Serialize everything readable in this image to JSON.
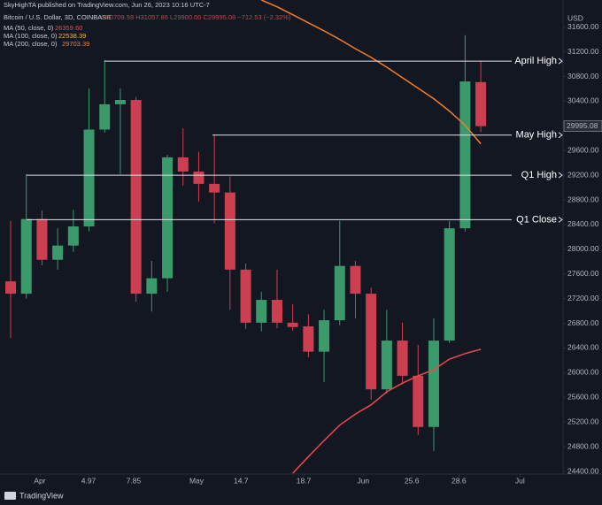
{
  "chart_data": {
    "type": "candlestick",
    "publisher": "SkyHighTA published on TradingView.com, Jun 26, 2023 10:16 UTC-7",
    "symbol": "Bitcoin / U.S. Dollar, 3D, COINBASE",
    "ohlc_header": "O30709.59 H31057.86 L29900.00 C29995.08 −712.53 (−2.32%)",
    "axis_unit": "USD",
    "last_price_label": "29995.08",
    "brand": "TradingView",
    "up_color": "#3b9a6b",
    "down_color": "#cc3f51",
    "candles": {
      "open": [
        27480,
        27280,
        28490,
        27830,
        28060,
        28370,
        29940,
        30350,
        30420,
        27280,
        27530,
        29490,
        29260,
        29060,
        28920,
        27670,
        26810,
        27180,
        26810,
        26750,
        26340,
        26850,
        27730,
        27280,
        25730,
        26520,
        25950,
        25120,
        26520,
        28340,
        30709.59
      ],
      "high": [
        28460,
        29220,
        28630,
        28340,
        28640,
        30610,
        31070,
        30610,
        30470,
        27810,
        29530,
        29960,
        29580,
        29860,
        29180,
        27770,
        27310,
        27670,
        27110,
        26950,
        27020,
        28460,
        27810,
        27380,
        27020,
        26810,
        26450,
        26880,
        28460,
        31470,
        31057.86
      ],
      "low": [
        26560,
        27200,
        27740,
        27670,
        27960,
        28290,
        29890,
        29220,
        27150,
        26990,
        27310,
        29030,
        28770,
        28420,
        27020,
        26710,
        26670,
        26720,
        26680,
        26250,
        25850,
        26770,
        26880,
        25560,
        25660,
        25810,
        24990,
        24730,
        26480,
        28290,
        29900
      ],
      "close": [
        27280,
        28490,
        27830,
        28060,
        28370,
        29940,
        30350,
        30420,
        27280,
        27530,
        29490,
        29260,
        29060,
        28920,
        27670,
        26810,
        27180,
        26810,
        26740,
        26340,
        26850,
        27730,
        27280,
        25730,
        26520,
        25950,
        25120,
        26520,
        28340,
        30720,
        29995.08
      ]
    },
    "series": [
      {
        "name": "MA (50, close, 0)",
        "value_label": "26359.60",
        "color": "#f0474f",
        "values": [
          null,
          null,
          null,
          null,
          null,
          null,
          null,
          null,
          null,
          null,
          null,
          null,
          null,
          null,
          null,
          null,
          null,
          null,
          24370,
          24640,
          24900,
          25150,
          25330,
          25480,
          25690,
          25830,
          25950,
          26050,
          26220,
          26310,
          26380
        ]
      },
      {
        "name": "MA (100, close, 0)",
        "value_label": "22538.39",
        "color": "#f3b83a",
        "values": [
          null,
          null,
          null,
          null,
          null,
          null,
          null,
          null,
          null,
          null,
          null,
          null,
          null,
          null,
          null,
          null,
          null,
          null,
          null,
          null,
          null,
          null,
          null,
          null,
          null,
          null,
          null,
          null,
          null,
          null,
          null
        ]
      },
      {
        "name": "MA (200, close, 0)",
        "value_label": "29703.39",
        "color": "#f57c27",
        "values": [
          null,
          null,
          null,
          null,
          null,
          null,
          null,
          null,
          null,
          null,
          null,
          null,
          null,
          null,
          null,
          null,
          32040,
          31930,
          31800,
          31670,
          31540,
          31400,
          31250,
          31110,
          30950,
          30780,
          30610,
          30440,
          30240,
          30010,
          29710
        ]
      }
    ],
    "levels": [
      {
        "label": "April High",
        "value": 31050
      },
      {
        "label": "May High",
        "value": 29850
      },
      {
        "label": "Q1 High",
        "value": 29200
      },
      {
        "label": "Q1 Close",
        "value": 28480
      }
    ],
    "xlim": [
      -0.68,
      35.25
    ],
    "xticks": [
      {
        "value": 1.86,
        "label": "Apr"
      },
      4.97,
      7.85,
      {
        "value": 11.86,
        "label": "May"
      },
      14.7,
      18.7,
      {
        "value": 22.5,
        "label": "Jun"
      },
      25.6,
      28.6,
      {
        "value": 32.5,
        "label": "Jul"
      }
    ],
    "ylim": [
      24357,
      32040
    ],
    "yticks": [
      {
        "value": 24400,
        "label": "24400.00"
      },
      {
        "value": 24800,
        "label": "24800.00"
      },
      {
        "value": 25200,
        "label": "25200.00"
      },
      {
        "value": 25600,
        "label": "25600.00"
      },
      {
        "value": 26000,
        "label": "26000.00"
      },
      {
        "value": 26400,
        "label": "26400.00"
      },
      {
        "value": 26800,
        "label": "26800.00"
      },
      {
        "value": 27200,
        "label": "27200.00"
      },
      {
        "value": 27600,
        "label": "27600.00"
      },
      {
        "value": 28000,
        "label": "28000.00"
      },
      {
        "value": 28400,
        "label": "28400.00"
      },
      {
        "value": 28800,
        "label": "28800.00"
      },
      {
        "value": 29200,
        "label": "29200.00"
      },
      {
        "value": 29600,
        "label": "29600.00"
      },
      {
        "value": 30400,
        "label": "30400.00"
      },
      {
        "value": 30800,
        "label": "30800.00"
      },
      {
        "value": 31200,
        "label": "31200.00"
      },
      {
        "value": 31600,
        "label": "31600.00"
      }
    ],
    "grid": false
  }
}
